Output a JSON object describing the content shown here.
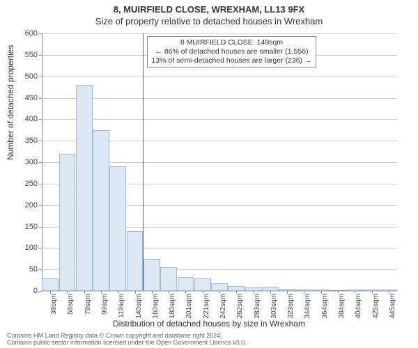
{
  "header": {
    "title": "8, MUIRFIELD CLOSE, WREXHAM, LL13 9FX",
    "subtitle": "Size of property relative to detached houses in Wrexham"
  },
  "chart": {
    "type": "histogram",
    "y_label": "Number of detached properties",
    "x_label": "Distribution of detached houses by size in Wrexham",
    "ylim": [
      0,
      600
    ],
    "y_tick_step": 50,
    "y_ticks": [
      0,
      50,
      100,
      150,
      200,
      250,
      300,
      350,
      400,
      450,
      500,
      550,
      600
    ],
    "x_tick_labels": [
      "38sqm",
      "58sqm",
      "79sqm",
      "99sqm",
      "119sqm",
      "140sqm",
      "160sqm",
      "180sqm",
      "201sqm",
      "221sqm",
      "242sqm",
      "262sqm",
      "283sqm",
      "303sqm",
      "323sqm",
      "344sqm",
      "364sqm",
      "384sqm",
      "404sqm",
      "425sqm",
      "445sqm"
    ],
    "bar_values": [
      30,
      320,
      480,
      375,
      290,
      140,
      75,
      55,
      32,
      30,
      18,
      12,
      8,
      10,
      5,
      3,
      3,
      0,
      2,
      2,
      2
    ],
    "bar_fill_color": "#dde8f5",
    "bar_border_color": "#9bb8d9",
    "grid_color": "#cccccc",
    "axis_color": "#888888",
    "background_color": "#ffffff",
    "title_fontsize": 13,
    "label_fontsize": 12,
    "tick_fontsize": 11,
    "reference_line": {
      "x_value": 149,
      "color": "#cc3333",
      "width": 1
    },
    "annotation": {
      "lines": [
        "8 MUIRFIELD CLOSE: 149sqm",
        "← 86% of detached houses are smaller (1,556)",
        "13% of semi-detached houses are larger (236) →"
      ],
      "border_color": "#888888",
      "background_color": "#ffffff",
      "fontsize": 10.5
    }
  },
  "footer": {
    "line1": "Contains HM Land Registry data © Crown copyright and database right 2024.",
    "line2": "Contains public sector information licensed under the Open Government Licence v3.0."
  }
}
